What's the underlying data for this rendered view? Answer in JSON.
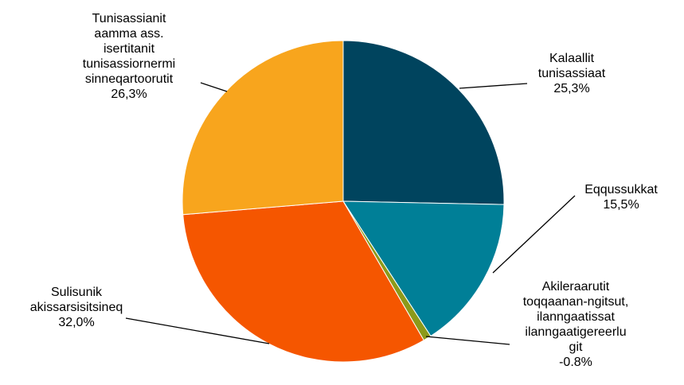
{
  "chart_data": {
    "type": "pie",
    "title": "",
    "slices": [
      {
        "label_lines": [
          "Kalaallit",
          "tunisassiaat"
        ],
        "value_label": "25,3%",
        "value": 25.3,
        "color": "#00445e"
      },
      {
        "label_lines": [
          "Eqqussukkat"
        ],
        "value_label": "15,5%",
        "value": 15.5,
        "color": "#007f97"
      },
      {
        "label_lines": [
          "Akileraarutit",
          "toqqaanan-ngitsut,",
          "ilanngaatissat",
          "ilanngaatigereerlu",
          "git"
        ],
        "value_label": "-0.8%",
        "value": -0.8,
        "color": "#8c9a1a"
      },
      {
        "label_lines": [
          "Sulisunik",
          "akissarsisitsineq"
        ],
        "value_label": "32,0%",
        "value": 32.0,
        "color": "#f55600"
      },
      {
        "label_lines": [
          "Tunisassianit",
          "aamma ass.",
          "isertitanit",
          "tunisassiornermi",
          "sinneqartoorutit"
        ],
        "value_label": "26,3%",
        "value": 26.3,
        "color": "#f8a51d"
      }
    ],
    "legend": "none"
  }
}
